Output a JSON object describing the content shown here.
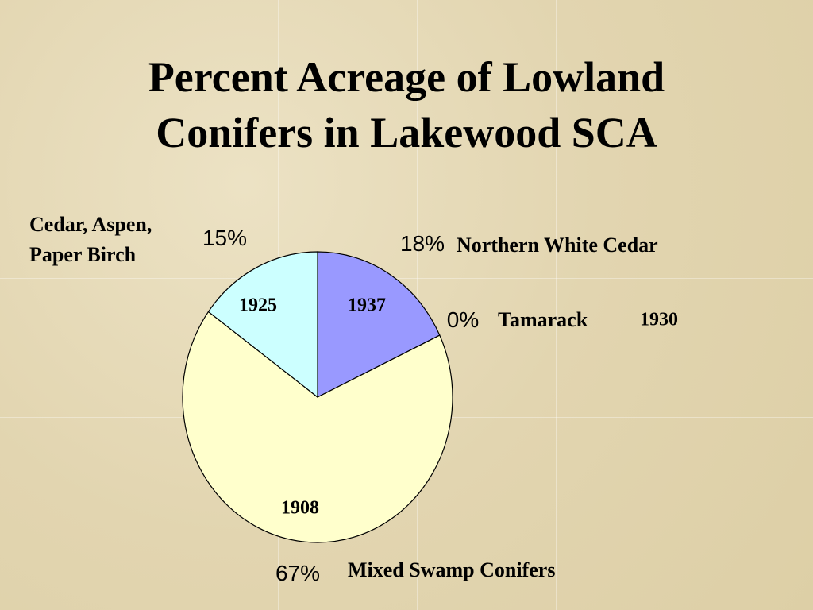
{
  "chart_data": {
    "type": "pie",
    "title": "Percent Acreage of Lowland Conifers in Lakewood SCA",
    "categories": [
      "Northern White Cedar",
      "Tamarack",
      "Mixed Swamp Conifers",
      "Cedar, Aspen, Paper Birch"
    ],
    "values": [
      18,
      0,
      67,
      15
    ],
    "value_labels": [
      "18%",
      "0%",
      "67%",
      "15%"
    ],
    "years": [
      "1937",
      "1930",
      "1908",
      "1925"
    ],
    "colors": [
      "#9999ff",
      "#993366",
      "#ffffcc",
      "#ccffff"
    ]
  }
}
